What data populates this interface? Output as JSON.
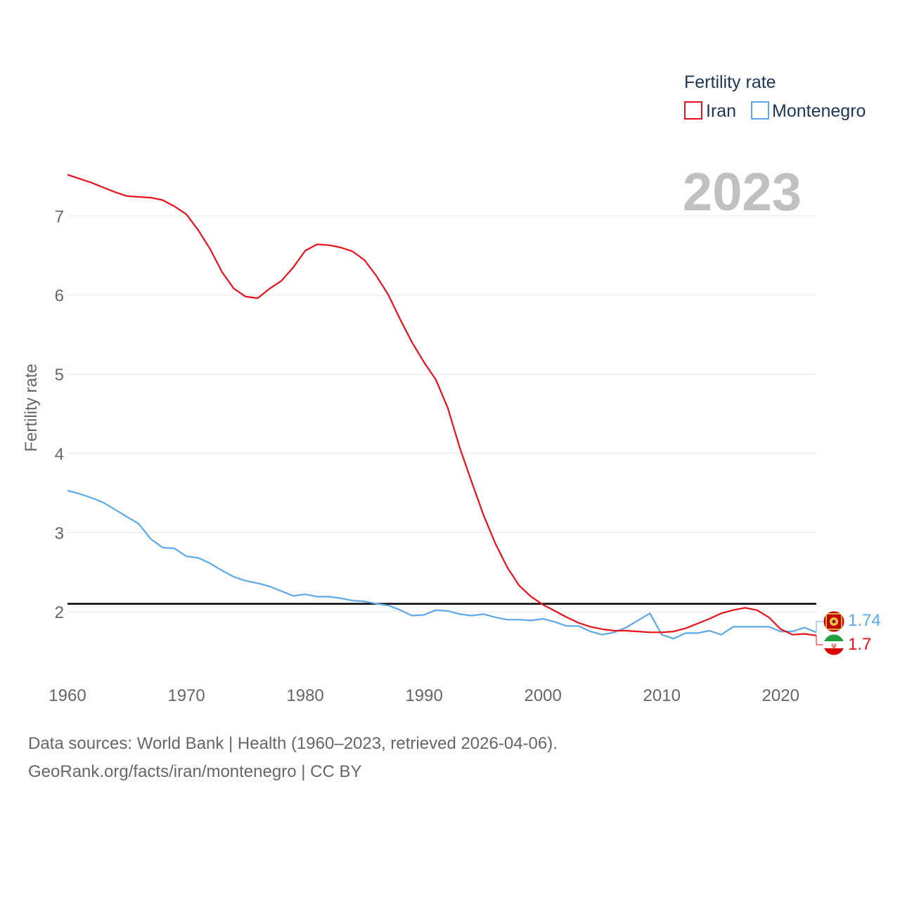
{
  "chart_data": {
    "type": "line",
    "title": "",
    "ylabel": "Fertility rate",
    "xlabel": "",
    "year_label": "2023",
    "xlim": [
      1960,
      2023
    ],
    "ylim": [
      1.2,
      7.7
    ],
    "x_ticks": [
      1960,
      1970,
      1980,
      1990,
      2000,
      2010,
      2020
    ],
    "y_ticks": [
      2,
      3,
      4,
      5,
      6,
      7
    ],
    "grid": true,
    "reference_line": 2.1,
    "legend": {
      "title": "Fertility rate",
      "position": "top-right",
      "items": [
        {
          "name": "Iran",
          "color": "#e8101a"
        },
        {
          "name": "Montenegro",
          "color": "#5ca8e8"
        }
      ]
    },
    "x": [
      1960,
      1961,
      1962,
      1963,
      1964,
      1965,
      1966,
      1967,
      1968,
      1969,
      1970,
      1971,
      1972,
      1973,
      1974,
      1975,
      1976,
      1977,
      1978,
      1979,
      1980,
      1981,
      1982,
      1983,
      1984,
      1985,
      1986,
      1987,
      1988,
      1989,
      1990,
      1991,
      1992,
      1993,
      1994,
      1995,
      1996,
      1997,
      1998,
      1999,
      2000,
      2001,
      2002,
      2003,
      2004,
      2005,
      2006,
      2007,
      2008,
      2009,
      2010,
      2011,
      2012,
      2013,
      2014,
      2015,
      2016,
      2017,
      2018,
      2019,
      2020,
      2021,
      2022,
      2023
    ],
    "series": [
      {
        "name": "Iran",
        "color": "#e8101a",
        "end_label": "1.7",
        "values": [
          7.52,
          7.47,
          7.42,
          7.36,
          7.3,
          7.25,
          7.24,
          7.23,
          7.2,
          7.12,
          7.02,
          6.82,
          6.58,
          6.29,
          6.08,
          5.98,
          5.96,
          6.08,
          6.18,
          6.35,
          6.56,
          6.64,
          6.63,
          6.6,
          6.55,
          6.44,
          6.24,
          6.0,
          5.69,
          5.4,
          5.15,
          4.93,
          4.57,
          4.07,
          3.64,
          3.22,
          2.86,
          2.56,
          2.33,
          2.19,
          2.09,
          2.01,
          1.93,
          1.86,
          1.81,
          1.78,
          1.76,
          1.76,
          1.75,
          1.74,
          1.74,
          1.75,
          1.79,
          1.85,
          1.91,
          1.98,
          2.02,
          2.05,
          2.02,
          1.93,
          1.78,
          1.71,
          1.72,
          1.7
        ]
      },
      {
        "name": "Montenegro",
        "color": "#5ca8e8",
        "end_label": "1.74",
        "values": [
          3.53,
          3.49,
          3.44,
          3.38,
          3.29,
          3.2,
          3.11,
          2.92,
          2.81,
          2.8,
          2.7,
          2.68,
          2.61,
          2.52,
          2.44,
          2.39,
          2.36,
          2.32,
          2.26,
          2.2,
          2.22,
          2.19,
          2.19,
          2.17,
          2.14,
          2.13,
          2.1,
          2.08,
          2.02,
          1.95,
          1.96,
          2.02,
          2.01,
          1.97,
          1.95,
          1.97,
          1.93,
          1.9,
          1.9,
          1.89,
          1.91,
          1.87,
          1.82,
          1.82,
          1.75,
          1.71,
          1.74,
          1.8,
          1.89,
          1.98,
          1.71,
          1.66,
          1.73,
          1.73,
          1.76,
          1.71,
          1.81,
          1.81,
          1.81,
          1.81,
          1.75,
          1.75,
          1.8,
          1.74
        ]
      }
    ]
  },
  "footer": {
    "line1": "Data sources: World Bank | Health (1960–2023, retrieved 2026-04-06).",
    "line2": "GeoRank.org/facts/iran/montenegro | CC BY"
  }
}
